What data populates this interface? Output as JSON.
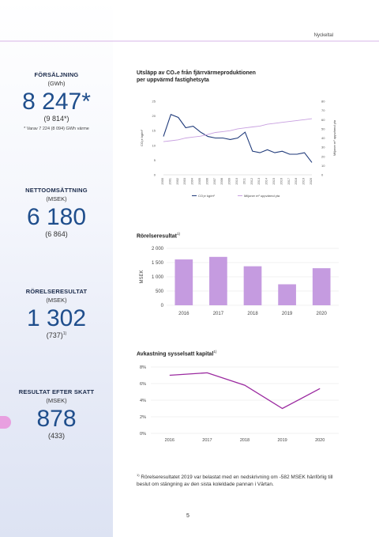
{
  "header": {
    "section_label": "Nyckeltal"
  },
  "kpis": [
    {
      "label": "FÖRSÄLJNING",
      "unit": "(GWh)",
      "value": "8 247*",
      "previous": "(9 814*)",
      "note": "* Varav 7 224 (8 094) GWh värme"
    },
    {
      "label": "NETTOOMSÄTTNING",
      "unit": "(MSEK)",
      "value": "6 180",
      "previous": "(6 864)"
    },
    {
      "label": "RÖRELSERESULTAT",
      "unit": "(MSEK)",
      "value": "1 302",
      "previous": "(737)",
      "previous_sup": "1)"
    },
    {
      "label": "RESULTAT EFTER SKATT",
      "unit": "(MSEK)",
      "value": "878",
      "previous": "(433)"
    }
  ],
  "charts": {
    "emissions": {
      "title_line1": "Utsläpp av CO₂e från fjärrvärmeproduktionen",
      "title_line2": "per uppvärmd fastighetsyta"
    },
    "operating": {
      "title": "Rörelseresultat",
      "title_sup": "1)"
    },
    "return": {
      "title": "Avkastning sysselsatt kapital",
      "title_sup": "1)"
    }
  },
  "chart_data": [
    {
      "type": "line",
      "x": [
        "2000",
        "2001",
        "2002",
        "2003",
        "2004",
        "2005",
        "2006",
        "2007",
        "2008",
        "2009",
        "2010",
        "2011",
        "2012",
        "2013",
        "2014",
        "2015",
        "2016",
        "2017",
        "2018",
        "2019",
        "2020"
      ],
      "series": [
        {
          "name": "CO₂e kg/m²",
          "axis": "left",
          "color": "#1f3a7a",
          "values": [
            13,
            20.5,
            19.5,
            16,
            16.5,
            14.5,
            13,
            12.5,
            12.5,
            12,
            12.5,
            14.5,
            8,
            7.5,
            8.5,
            7.5,
            8,
            7,
            7,
            7.5,
            4.2
          ]
        },
        {
          "name": "Miljoner m² uppvärmd yta",
          "axis": "right",
          "color": "#c8a0e0",
          "values": [
            36,
            37,
            38,
            40,
            41,
            42,
            44,
            46,
            47,
            48,
            50,
            51,
            52,
            53,
            55,
            56,
            57,
            58,
            59,
            60,
            61
          ]
        }
      ],
      "ylabel": "CO₂e kg/m²",
      "ylabel_right": "Miljoner m² uppvärmd yta",
      "ylim": [
        0,
        25
      ],
      "yticks": [
        "0",
        "5",
        "10",
        "15",
        "20",
        "25"
      ],
      "ylim_right": [
        0,
        80
      ],
      "yticks_right": [
        "0",
        "10",
        "20",
        "30",
        "40",
        "50",
        "60",
        "70",
        "80"
      ],
      "legend": [
        "CO₂e kg/m²",
        "Miljoner m² uppvärmd yta"
      ],
      "legend_position": "bottom"
    },
    {
      "type": "bar",
      "categories": [
        "2016",
        "2017",
        "2018",
        "2019",
        "2020"
      ],
      "values": [
        1610,
        1700,
        1370,
        737,
        1302
      ],
      "ylabel": "MSEK",
      "ylim": [
        0,
        2000
      ],
      "yticks": [
        "0",
        "500",
        "1 000",
        "1 500",
        "2 000"
      ],
      "color": "#c59be0"
    },
    {
      "type": "line",
      "x": [
        "2016",
        "2017",
        "2018",
        "2019",
        "2020"
      ],
      "values": [
        7.0,
        7.3,
        5.8,
        3.0,
        5.4
      ],
      "ylim": [
        0,
        8
      ],
      "yticks": [
        "0%",
        "2%",
        "4%",
        "6%",
        "8%"
      ],
      "color": "#9b2aa0"
    }
  ],
  "footnote": {
    "marker": "1)",
    "text": "Rörelseresultatet 2019 var belastat med en nedskrivning om -582 MSEK hänförlig till beslut om stängning av den sista koleldade pannan i Värtan."
  },
  "page": {
    "number": "5"
  }
}
